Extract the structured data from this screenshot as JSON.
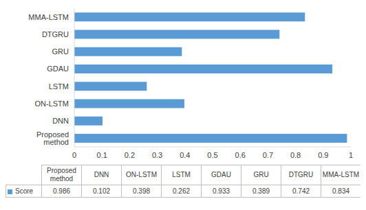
{
  "chart_data": {
    "type": "bar",
    "orientation": "horizontal",
    "categories": [
      "Proposed method",
      "DNN",
      "ON-LSTM",
      "LSTM",
      "GDAU",
      "GRU",
      "DTGRU",
      "MMA-LSTM"
    ],
    "series": [
      {
        "name": "Score",
        "color": "#5b9bd5",
        "values": [
          0.986,
          0.102,
          0.398,
          0.262,
          0.933,
          0.389,
          0.742,
          0.834
        ]
      }
    ],
    "xlim": [
      0,
      1
    ],
    "xticks": [
      0,
      0.1,
      0.2,
      0.3,
      0.4,
      0.5,
      0.6,
      0.7,
      0.8,
      0.9,
      1
    ],
    "grid": false
  }
}
